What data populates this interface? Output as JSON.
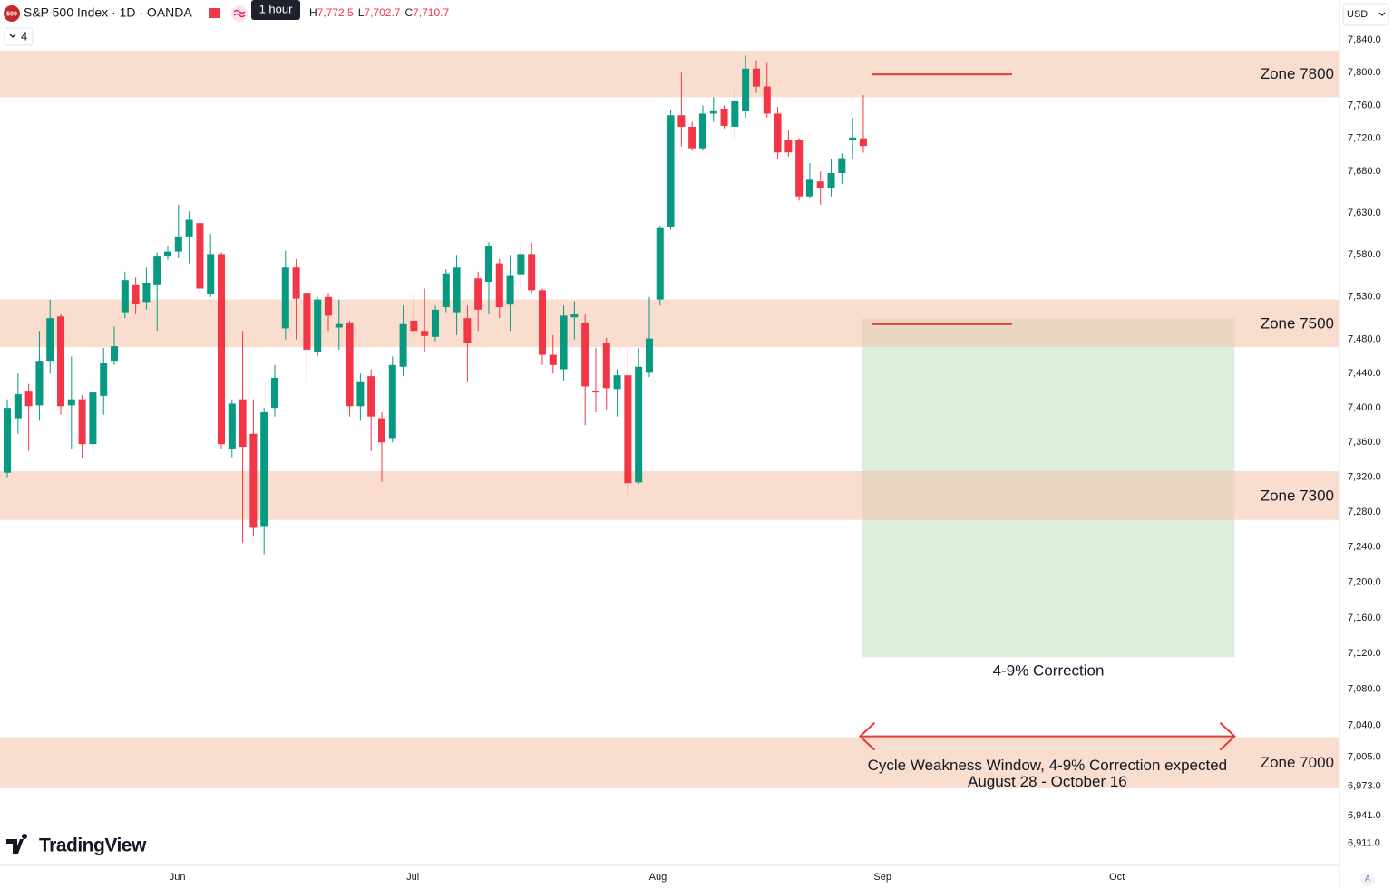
{
  "chart_data": {
    "type": "candlestick",
    "title": "S&P 500 Index · 1D · OANDA",
    "log_scale": true,
    "grid": false,
    "up_color": "#089981",
    "down_color": "#f23645",
    "open": [
      7325,
      7388,
      7419,
      7403,
      7455,
      7507,
      7403,
      7410,
      7358,
      7414,
      7455,
      7512,
      7545,
      7524,
      7545,
      7578,
      7584,
      7601,
      7618,
      7534,
      7581,
      7353,
      7410,
      7370,
      7263,
      7400,
      7493,
      7565,
      7535,
      7465,
      7530,
      7494,
      7500,
      7402,
      7437,
      7388,
      7365,
      7448,
      7502,
      7490,
      7483,
      7518,
      7512,
      7505,
      7552,
      7548,
      7570,
      7521,
      7557,
      7581,
      7538,
      7462,
      7445,
      7506,
      7500,
      7420,
      7476,
      7422,
      7438,
      7314,
      7441,
      7527,
      7613,
      7748,
      7734,
      7708,
      7750,
      7756,
      7734,
      7753,
      7805,
      7783,
      7750,
      7718,
      7718,
      7650,
      7668,
      7660,
      7678,
      7718,
      7720
    ],
    "high": [
      7410,
      7440,
      7428,
      7490,
      7527,
      7510,
      7460,
      7415,
      7430,
      7470,
      7495,
      7560,
      7553,
      7565,
      7583,
      7590,
      7640,
      7632,
      7625,
      7605,
      7583,
      7410,
      7490,
      7410,
      7400,
      7450,
      7585,
      7575,
      7545,
      7530,
      7535,
      7527,
      7502,
      7440,
      7445,
      7395,
      7460,
      7520,
      7535,
      7540,
      7520,
      7563,
      7580,
      7520,
      7560,
      7595,
      7575,
      7580,
      7590,
      7595,
      7540,
      7485,
      7520,
      7525,
      7510,
      7470,
      7482,
      7445,
      7470,
      7470,
      7530,
      7615,
      7755,
      7800,
      7740,
      7760,
      7770,
      7760,
      7780,
      7821,
      7815,
      7813,
      7758,
      7730,
      7720,
      7690,
      7680,
      7695,
      7702,
      7745,
      7772.5
    ],
    "low": [
      7320,
      7370,
      7350,
      7385,
      7440,
      7392,
      7352,
      7342,
      7345,
      7392,
      7450,
      7505,
      7510,
      7515,
      7490,
      7574,
      7576,
      7570,
      7533,
      7530,
      7352,
      7343,
      7245,
      7252,
      7232,
      7390,
      7480,
      7480,
      7432,
      7460,
      7490,
      7468,
      7390,
      7385,
      7350,
      7315,
      7360,
      7437,
      7480,
      7465,
      7478,
      7512,
      7485,
      7430,
      7490,
      7510,
      7505,
      7490,
      7540,
      7535,
      7450,
      7440,
      7432,
      7480,
      7380,
      7395,
      7398,
      7390,
      7300,
      7312,
      7436,
      7520,
      7610,
      7710,
      7705,
      7705,
      7740,
      7732,
      7720,
      7745,
      7775,
      7745,
      7695,
      7698,
      7645,
      7648,
      7640,
      7650,
      7665,
      7695,
      7702.7
    ],
    "close": [
      7400,
      7416,
      7402,
      7455,
      7505,
      7402,
      7410,
      7358,
      7418,
      7452,
      7472,
      7550,
      7522,
      7547,
      7578,
      7584,
      7601,
      7622,
      7540,
      7581,
      7358,
      7405,
      7355,
      7262,
      7395,
      7435,
      7565,
      7528,
      7468,
      7527,
      7508,
      7498,
      7402,
      7430,
      7390,
      7360,
      7450,
      7498,
      7490,
      7484,
      7515,
      7558,
      7565,
      7476,
      7515,
      7590,
      7518,
      7555,
      7581,
      7538,
      7462,
      7450,
      7508,
      7510,
      7425,
      7418,
      7423,
      7438,
      7313,
      7448,
      7481,
      7612,
      7748,
      7734,
      7708,
      7750,
      7754,
      7735,
      7766,
      7805,
      7783,
      7750,
      7703,
      7703,
      7650,
      7670,
      7660,
      7678,
      7696,
      7721,
      7710.7
    ],
    "xlim": [
      -0.68,
      124.5
    ],
    "xticks": [
      {
        "value": 15.9,
        "label": "Jun"
      },
      {
        "value": 37.9,
        "label": "Jul"
      },
      {
        "value": 60.8,
        "label": "Aug"
      },
      {
        "value": 81.8,
        "label": "Sep"
      },
      {
        "value": 103.7,
        "label": "Oct"
      }
    ],
    "ylim": [
      6887,
      7856
    ],
    "yticks": [
      {
        "value": 7840,
        "label": "7,840.0"
      },
      {
        "value": 7800,
        "label": "7,800.0"
      },
      {
        "value": 7760,
        "label": "7,760.0"
      },
      {
        "value": 7720,
        "label": "7,720.0"
      },
      {
        "value": 7680,
        "label": "7,680.0"
      },
      {
        "value": 7630,
        "label": "7,630.0"
      },
      {
        "value": 7580,
        "label": "7,580.0"
      },
      {
        "value": 7530,
        "label": "7,530.0"
      },
      {
        "value": 7480,
        "label": "7,480.0"
      },
      {
        "value": 7440,
        "label": "7,440.0"
      },
      {
        "value": 7400,
        "label": "7,400.0"
      },
      {
        "value": 7360,
        "label": "7,360.0"
      },
      {
        "value": 7320,
        "label": "7,320.0"
      },
      {
        "value": 7280,
        "label": "7,280.0"
      },
      {
        "value": 7240,
        "label": "7,240.0"
      },
      {
        "value": 7200,
        "label": "7,200.0"
      },
      {
        "value": 7160,
        "label": "7,160.0"
      },
      {
        "value": 7120,
        "label": "7,120.0"
      },
      {
        "value": 7080,
        "label": "7,080.0"
      },
      {
        "value": 7040,
        "label": "7,040.0"
      },
      {
        "value": 7005,
        "label": "7,005.0"
      },
      {
        "value": 6973,
        "label": "6,973.0"
      },
      {
        "value": 6941,
        "label": "6,941.0"
      },
      {
        "value": 6911,
        "label": "6,911.0"
      }
    ],
    "zone_color": "#f5c8b0",
    "zones": [
      {
        "label": "Zone 7800",
        "range": [
          7770,
          7827
        ]
      },
      {
        "label": "Zone 7500",
        "range": [
          7471,
          7527
        ]
      },
      {
        "label": "Zone 7300",
        "range": [
          7271,
          7327
        ]
      },
      {
        "label": "Zone 7000",
        "range": [
          6971,
          7027
        ]
      }
    ],
    "level_color": "#e53935",
    "levels": [
      {
        "value": 7798,
        "x": [
          80.8,
          93.9
        ]
      },
      {
        "value": 7498,
        "x": [
          80.8,
          93.9
        ]
      }
    ],
    "correction_box": {
      "label": "4-9% Correction",
      "x": [
        79.9,
        114.7
      ],
      "range": [
        7116,
        7505
      ],
      "color": "#a5d6a7"
    },
    "window": {
      "label": "Cycle Weakness Window, 4-9% Correction expected",
      "dates": "August 28 - October 16",
      "x": [
        79.7,
        114.7
      ],
      "value": 7028,
      "color": "#e53935"
    }
  },
  "header": {
    "badge": "500",
    "tooltip": "1 hour",
    "ohlc": [
      {
        "key": "H",
        "value": "7,772.5"
      },
      {
        "key": "L",
        "value": "7,702.7"
      },
      {
        "key": "C",
        "value": "7,710.7"
      }
    ],
    "indicators": "4",
    "currency": "USD",
    "brand": "TradingView",
    "scale_mode": "A"
  }
}
